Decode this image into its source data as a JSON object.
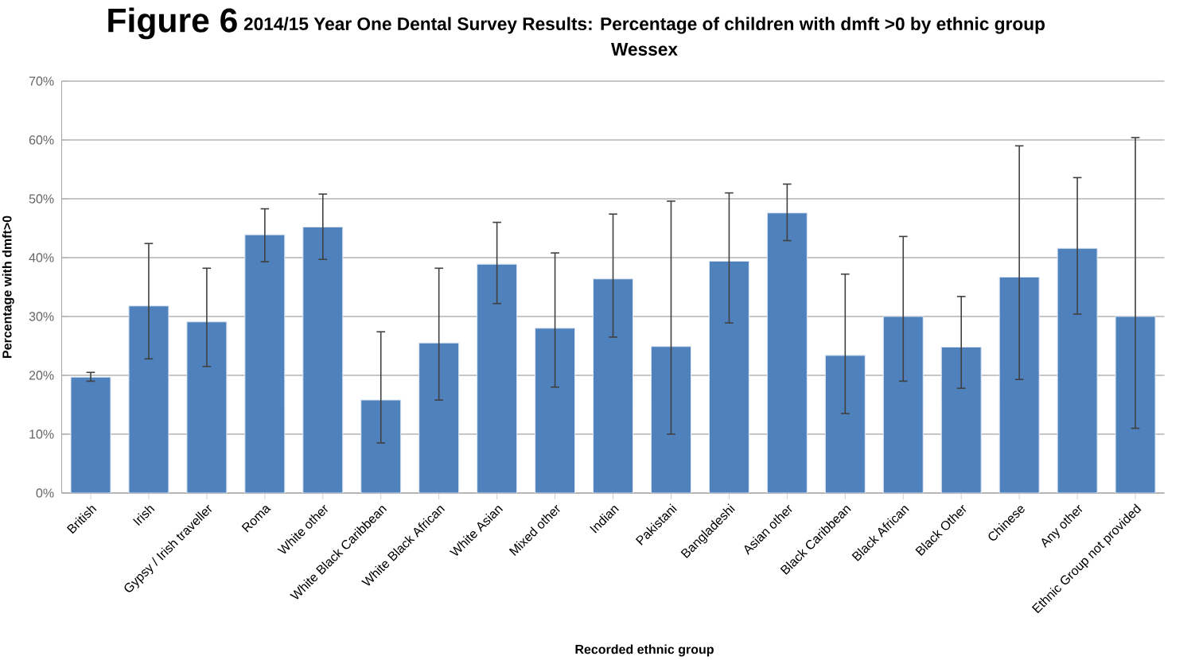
{
  "chart_data": {
    "type": "bar",
    "title": "2014/15 Year One Dental Survey Results: Percentage of children with dmft >0 by ethnic group",
    "subtitle": "Wessex",
    "annotations": [
      "Figure 6"
    ],
    "xlabel": "Recorded ethnic group",
    "ylabel": "Percentage with dmft>0",
    "categories": [
      "British",
      "Irish",
      "Gypsy / Irish traveller",
      "Roma",
      "White other",
      "White Black Caribbean",
      "White Black African",
      "White Asian",
      "Mixed other",
      "Indian",
      "Pakistani",
      "Bangladeshi",
      "Asian other",
      "Black Caribbean",
      "Black African",
      "Black Other",
      "Chinese",
      "Any other",
      "Ethnic Group not provided"
    ],
    "values": [
      19.7,
      31.8,
      29.1,
      43.9,
      45.2,
      15.8,
      25.5,
      38.9,
      28,
      36.4,
      24.9,
      39.4,
      47.6,
      23.4,
      30,
      24.8,
      36.7,
      41.6,
      30
    ],
    "errors": [
      [
        19,
        20.5
      ],
      [
        22.8,
        42.4
      ],
      [
        21.5,
        38.2
      ],
      [
        39.3,
        48.3
      ],
      [
        39.7,
        50.8
      ],
      [
        8.5,
        27.4
      ],
      [
        15.8,
        38.2
      ],
      [
        32.2,
        46
      ],
      [
        18,
        40.8
      ],
      [
        26.5,
        47.4
      ],
      [
        10,
        49.6
      ],
      [
        28.9,
        51
      ],
      [
        42.9,
        52.5
      ],
      [
        13.5,
        37.2
      ],
      [
        19,
        43.6
      ],
      [
        17.8,
        33.4
      ],
      [
        19.3,
        59
      ],
      [
        30.4,
        53.6
      ],
      [
        11,
        60.4
      ]
    ],
    "color": "#4f81bd",
    "ylim": [
      0,
      70
    ],
    "yticks": [
      {
        "value": 0,
        "label": "0%"
      },
      {
        "value": 10,
        "label": "10%"
      },
      {
        "value": 20,
        "label": "20%"
      },
      {
        "value": 30,
        "label": "30%"
      },
      {
        "value": 40,
        "label": "40%"
      },
      {
        "value": 50,
        "label": "50%"
      },
      {
        "value": 60,
        "label": "60%"
      },
      {
        "value": 70,
        "label": "70%"
      }
    ],
    "grid": "y"
  }
}
